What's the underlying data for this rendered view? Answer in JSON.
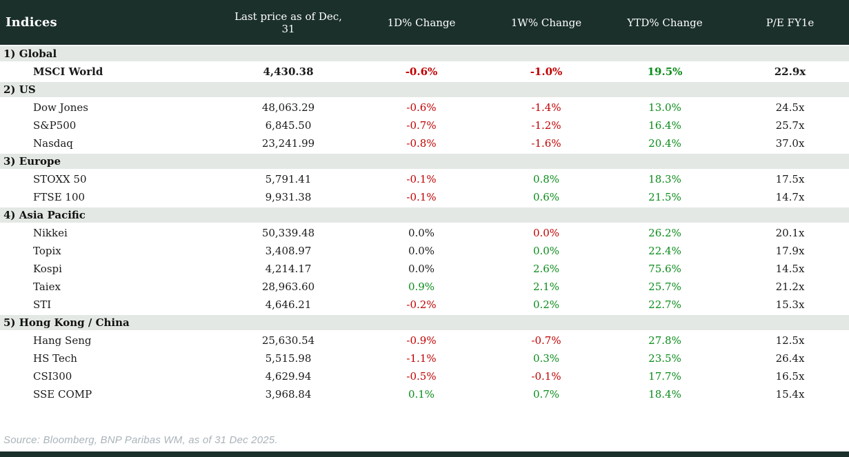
{
  "colors": {
    "header_bg": "#1b302b",
    "band_bg": "#e3e8e4",
    "negative": "#c00000",
    "positive": "#0a8c1a",
    "neutral_text": "#1a1a1a",
    "source_text": "#a9b3ba"
  },
  "table": {
    "columns": [
      "Indices",
      "Last price as of Dec, 31",
      "1D% Change",
      "1W% Change",
      "YTD% Change",
      "P/E FY1e"
    ],
    "sections": [
      {
        "label": "1) Global",
        "rows": [
          {
            "name": "MSCI World",
            "bold": true,
            "price": "4,430.38",
            "d1": {
              "text": "-0.6%",
              "tone": "neg"
            },
            "w1": {
              "text": "-1.0%",
              "tone": "neg"
            },
            "ytd": {
              "text": "19.5%",
              "tone": "pos"
            },
            "pe": "22.9x"
          }
        ]
      },
      {
        "label": "2) US",
        "rows": [
          {
            "name": "Dow Jones",
            "price": "48,063.29",
            "d1": {
              "text": "-0.6%",
              "tone": "neg"
            },
            "w1": {
              "text": "-1.4%",
              "tone": "neg"
            },
            "ytd": {
              "text": "13.0%",
              "tone": "pos"
            },
            "pe": "24.5x"
          },
          {
            "name": "S&P500",
            "price": "6,845.50",
            "d1": {
              "text": "-0.7%",
              "tone": "neg"
            },
            "w1": {
              "text": "-1.2%",
              "tone": "neg"
            },
            "ytd": {
              "text": "16.4%",
              "tone": "pos"
            },
            "pe": "25.7x"
          },
          {
            "name": "Nasdaq",
            "price": "23,241.99",
            "d1": {
              "text": "-0.8%",
              "tone": "neg"
            },
            "w1": {
              "text": "-1.6%",
              "tone": "neg"
            },
            "ytd": {
              "text": "20.4%",
              "tone": "pos"
            },
            "pe": "37.0x"
          }
        ]
      },
      {
        "label": "3) Europe",
        "rows": [
          {
            "name": "STOXX 50",
            "price": "5,791.41",
            "d1": {
              "text": "-0.1%",
              "tone": "neg"
            },
            "w1": {
              "text": "0.8%",
              "tone": "pos"
            },
            "ytd": {
              "text": "18.3%",
              "tone": "pos"
            },
            "pe": "17.5x"
          },
          {
            "name": "FTSE 100",
            "price": "9,931.38",
            "d1": {
              "text": "-0.1%",
              "tone": "neg"
            },
            "w1": {
              "text": "0.6%",
              "tone": "pos"
            },
            "ytd": {
              "text": "21.5%",
              "tone": "pos"
            },
            "pe": "14.7x"
          }
        ]
      },
      {
        "label": "4) Asia Pacific",
        "rows": [
          {
            "name": "Nikkei",
            "price": "50,339.48",
            "d1": {
              "text": "0.0%",
              "tone": "neu"
            },
            "w1": {
              "text": "0.0%",
              "tone": "neg"
            },
            "ytd": {
              "text": "26.2%",
              "tone": "pos"
            },
            "pe": "20.1x"
          },
          {
            "name": "Topix",
            "price": "3,408.97",
            "d1": {
              "text": "0.0%",
              "tone": "neu"
            },
            "w1": {
              "text": "0.0%",
              "tone": "pos"
            },
            "ytd": {
              "text": "22.4%",
              "tone": "pos"
            },
            "pe": "17.9x"
          },
          {
            "name": "Kospi",
            "price": "4,214.17",
            "d1": {
              "text": "0.0%",
              "tone": "neu"
            },
            "w1": {
              "text": "2.6%",
              "tone": "pos"
            },
            "ytd": {
              "text": "75.6%",
              "tone": "pos"
            },
            "pe": "14.5x"
          },
          {
            "name": "Taiex",
            "price": "28,963.60",
            "d1": {
              "text": "0.9%",
              "tone": "pos"
            },
            "w1": {
              "text": "2.1%",
              "tone": "pos"
            },
            "ytd": {
              "text": "25.7%",
              "tone": "pos"
            },
            "pe": "21.2x"
          },
          {
            "name": "STI",
            "price": "4,646.21",
            "d1": {
              "text": "-0.2%",
              "tone": "neg"
            },
            "w1": {
              "text": "0.2%",
              "tone": "pos"
            },
            "ytd": {
              "text": "22.7%",
              "tone": "pos"
            },
            "pe": "15.3x"
          }
        ]
      },
      {
        "label": "5) Hong Kong / China",
        "rows": [
          {
            "name": "Hang Seng",
            "price": "25,630.54",
            "d1": {
              "text": "-0.9%",
              "tone": "neg"
            },
            "w1": {
              "text": "-0.7%",
              "tone": "neg"
            },
            "ytd": {
              "text": "27.8%",
              "tone": "pos"
            },
            "pe": "12.5x"
          },
          {
            "name": "HS Tech",
            "price": "5,515.98",
            "d1": {
              "text": "-1.1%",
              "tone": "neg"
            },
            "w1": {
              "text": "0.3%",
              "tone": "pos"
            },
            "ytd": {
              "text": "23.5%",
              "tone": "pos"
            },
            "pe": "26.4x"
          },
          {
            "name": "CSI300",
            "price": "4,629.94",
            "d1": {
              "text": "-0.5%",
              "tone": "neg"
            },
            "w1": {
              "text": "-0.1%",
              "tone": "neg"
            },
            "ytd": {
              "text": "17.7%",
              "tone": "pos"
            },
            "pe": "16.5x"
          },
          {
            "name": "SSE COMP",
            "price": "3,968.84",
            "d1": {
              "text": "0.1%",
              "tone": "pos"
            },
            "w1": {
              "text": "0.7%",
              "tone": "pos"
            },
            "ytd": {
              "text": "18.4%",
              "tone": "pos"
            },
            "pe": "15.4x"
          }
        ]
      }
    ]
  },
  "source_note": "Source: Bloomberg, BNP Paribas WM, as of 31 Dec 2025."
}
